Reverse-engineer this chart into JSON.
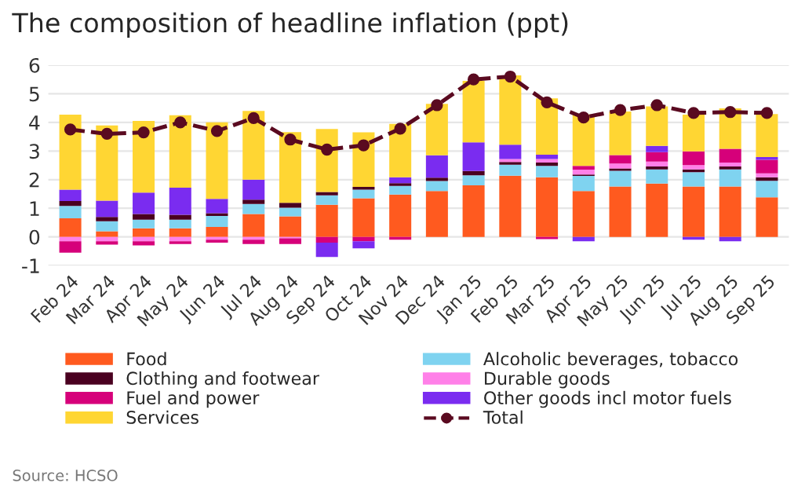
{
  "chart_data": {
    "type": "bar",
    "title": "The composition of headline inflation (ppt)",
    "stacked": true,
    "categories": [
      "Feb 24",
      "Mar 24",
      "Apr 24",
      "May 24",
      "Jun 24",
      "Jul 24",
      "Aug 24",
      "Sep 24",
      "Oct 24",
      "Nov 24",
      "Dec 24",
      "Jan 25",
      "Feb 25",
      "Mar 25",
      "Apr 25",
      "May 25",
      "Jun 25",
      "Jul 25",
      "Aug 25",
      "Sep 25"
    ],
    "series": [
      {
        "name": "Food",
        "color": "#ff5a1f",
        "values": [
          0.65,
          0.2,
          0.3,
          0.3,
          0.35,
          0.8,
          0.72,
          1.12,
          1.35,
          1.48,
          1.6,
          1.8,
          2.14,
          2.08,
          1.6,
          1.76,
          1.86,
          1.76,
          1.76,
          1.38
        ]
      },
      {
        "name": "Alcoholic beverages, tobacco",
        "color": "#7fd3f0",
        "values": [
          0.43,
          0.35,
          0.3,
          0.3,
          0.38,
          0.35,
          0.3,
          0.33,
          0.3,
          0.3,
          0.35,
          0.35,
          0.38,
          0.4,
          0.53,
          0.55,
          0.5,
          0.5,
          0.6,
          0.58
        ]
      },
      {
        "name": "Clothing and footwear",
        "color": "#4a0020",
        "values": [
          0.17,
          0.15,
          0.2,
          0.17,
          0.1,
          0.15,
          0.17,
          0.12,
          0.1,
          0.1,
          0.12,
          0.15,
          0.1,
          0.12,
          0.05,
          0.08,
          0.1,
          0.1,
          0.1,
          0.12
        ]
      },
      {
        "name": "Durable goods",
        "color": "#ff80e8",
        "values": [
          -0.15,
          -0.15,
          -0.15,
          -0.15,
          -0.1,
          -0.1,
          -0.05,
          0,
          0,
          0,
          0,
          0,
          0.1,
          0.12,
          0.17,
          0.17,
          0.17,
          0.15,
          0.14,
          0.14
        ]
      },
      {
        "name": "Fuel and power",
        "color": "#d6007a",
        "values": [
          -0.4,
          -0.12,
          -0.15,
          -0.1,
          -0.1,
          -0.15,
          -0.2,
          -0.2,
          -0.15,
          -0.1,
          0,
          0,
          0,
          -0.08,
          0.13,
          0.3,
          0.33,
          0.48,
          0.48,
          0.47
        ]
      },
      {
        "name": "Other goods incl motor fuels",
        "color": "#7a2cf0",
        "values": [
          0.4,
          0.57,
          0.75,
          0.95,
          0.5,
          0.7,
          0,
          -0.5,
          -0.25,
          0.2,
          0.78,
          1.0,
          0.5,
          0.15,
          -0.15,
          0,
          0.22,
          -0.1,
          -0.15,
          0.1
        ]
      },
      {
        "name": "Services",
        "color": "#ffd633",
        "values": [
          2.62,
          2.62,
          2.5,
          2.53,
          2.67,
          2.4,
          2.47,
          2.2,
          1.9,
          1.87,
          1.8,
          2.15,
          2.42,
          1.97,
          1.8,
          1.52,
          1.38,
          1.28,
          1.41,
          1.5
        ]
      },
      {
        "name": "Total",
        "type": "line",
        "color": "#5a0a20",
        "marker": "circle",
        "line_style": "dashed",
        "values": [
          3.75,
          3.6,
          3.65,
          4.0,
          3.7,
          4.15,
          3.4,
          3.05,
          3.2,
          3.78,
          4.6,
          5.5,
          5.6,
          4.7,
          4.17,
          4.43,
          4.6,
          4.33,
          4.36,
          4.33
        ]
      }
    ],
    "ylim": [
      -1,
      6
    ],
    "yticks": [
      -1,
      0,
      1,
      2,
      3,
      4,
      5,
      6
    ],
    "grid": "y",
    "legend": "bottom",
    "annotations": [
      "Source: HCSO"
    ]
  }
}
